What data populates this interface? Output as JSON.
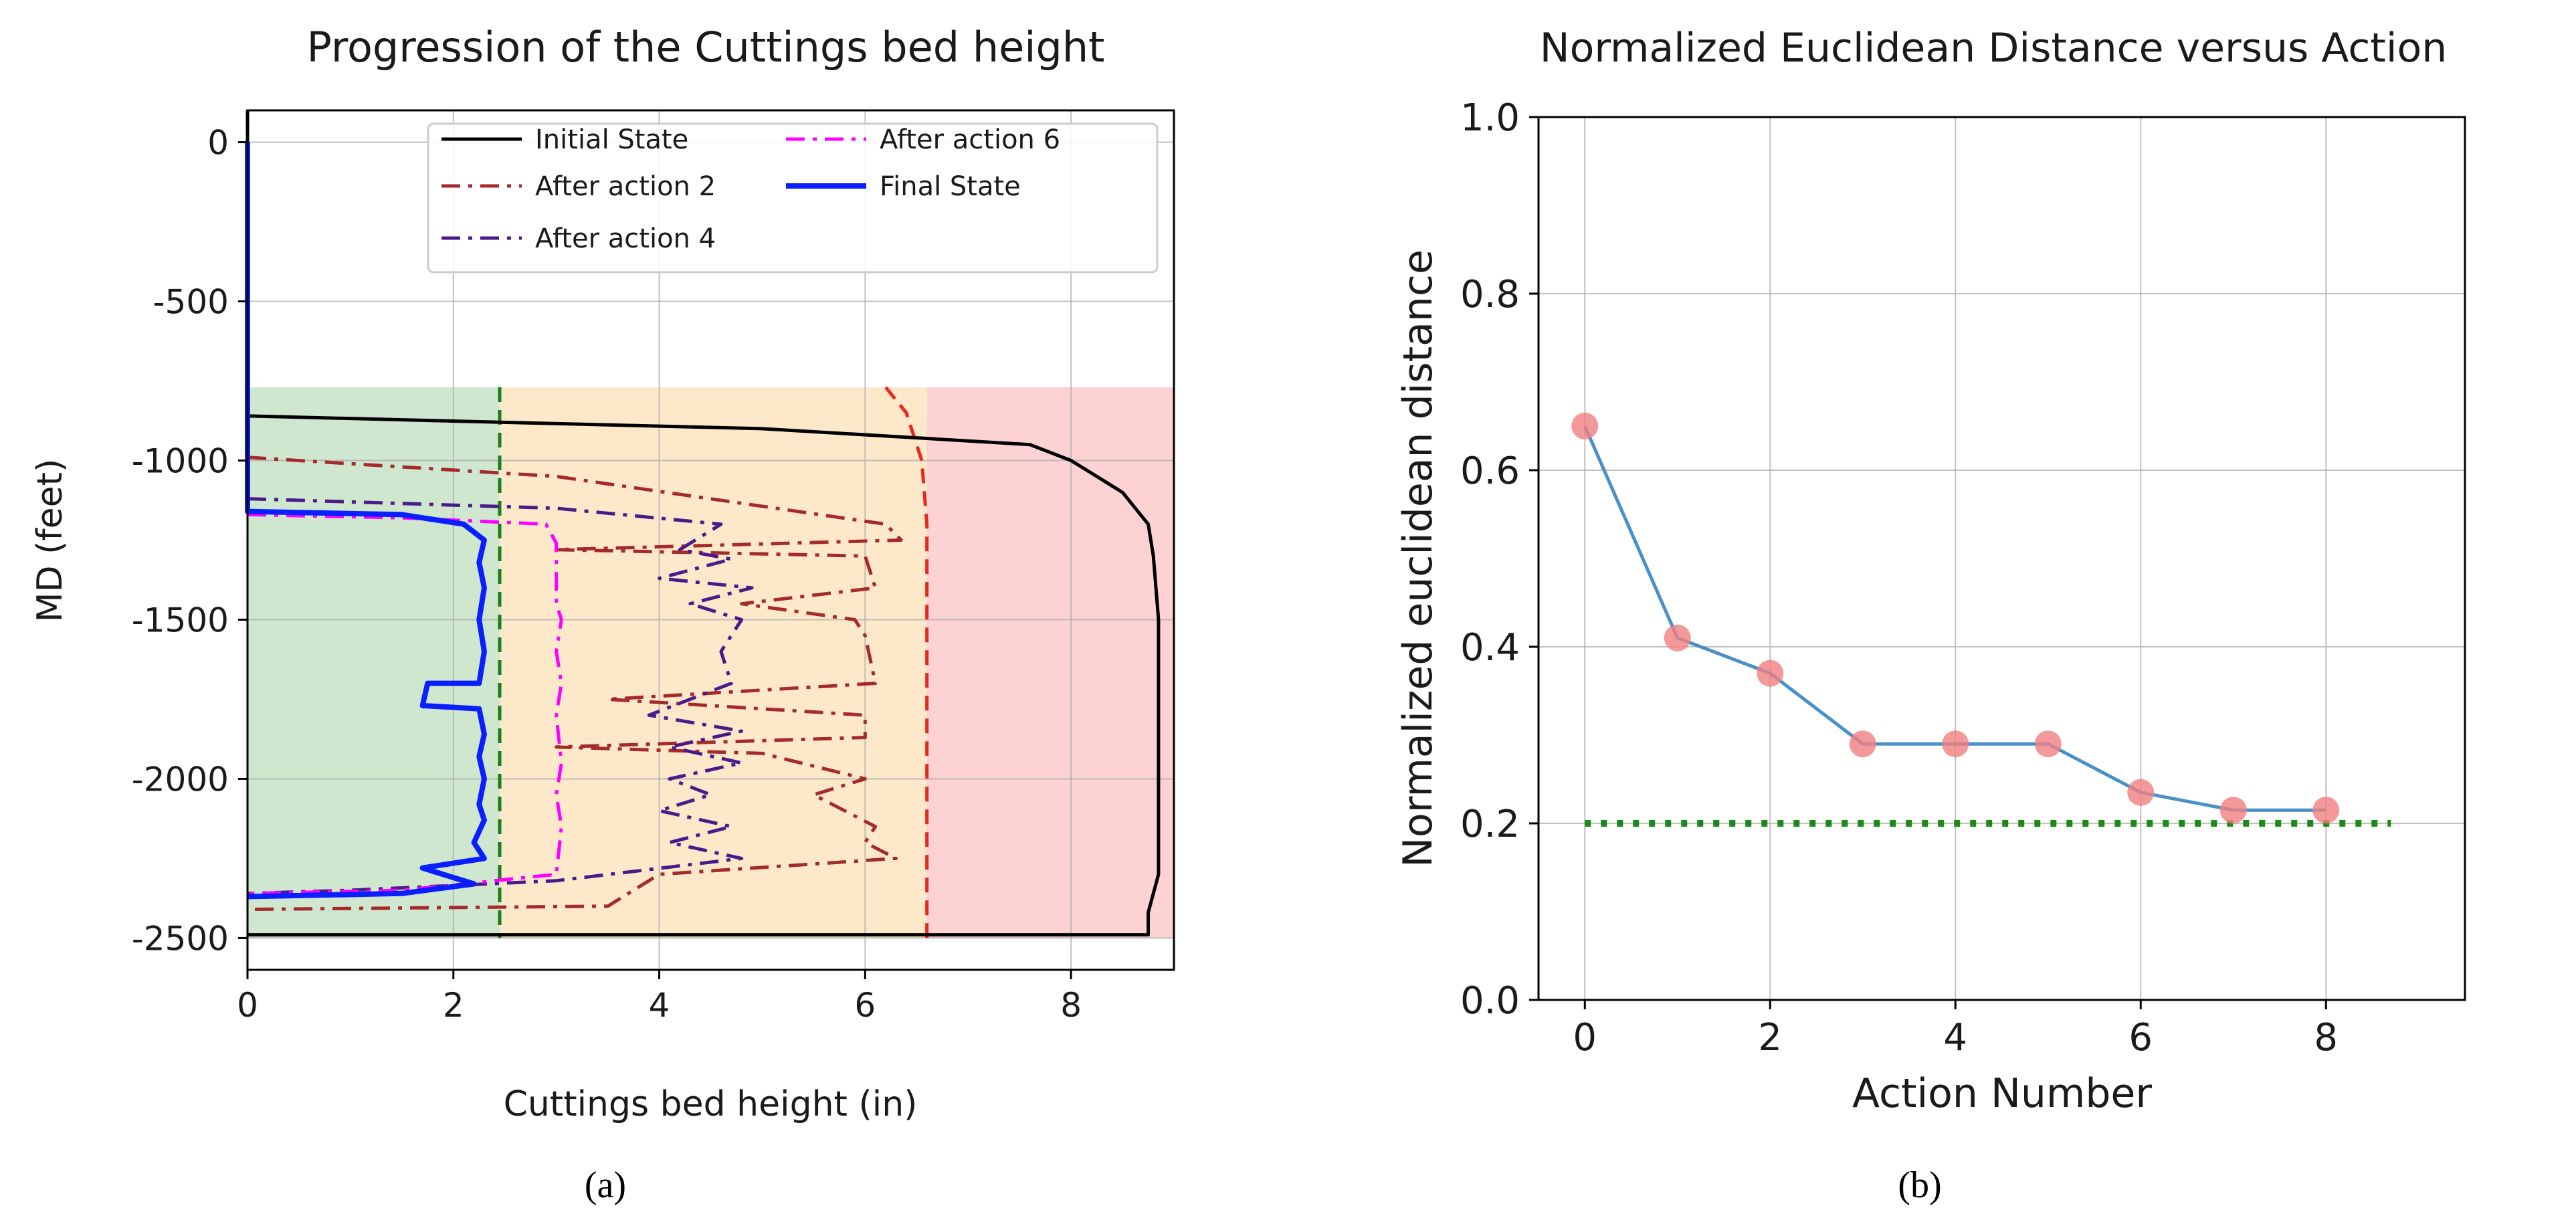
{
  "figure": {
    "caption_a": "(a)",
    "caption_b": "(b)",
    "colors": {
      "zone_green": "#cfe6cf",
      "zone_orange": "#fde9c9",
      "zone_red": "#fcd2d2",
      "initial_state": "#000000",
      "after_action_2": "#a52a2a",
      "after_action_4": "#4b1a8a",
      "after_action_6": "#ff00ff",
      "final_state": "#0a1fff",
      "threshold_green": "#1a7f1a",
      "threshold_red": "#e8281e",
      "line_b": "#4a90c8",
      "marker_b": "#f08080",
      "target_b": "#1a8a1a"
    }
  },
  "chart_data": [
    {
      "id": "a",
      "type": "line",
      "title": "Progression of the Cuttings bed height",
      "xlabel": "Cuttings bed height (in)",
      "ylabel": "MD (feet)",
      "xlim": [
        0,
        9
      ],
      "ylim": [
        -2600,
        100
      ],
      "xticks": [
        0,
        2,
        4,
        6,
        8
      ],
      "yticks": [
        0,
        -500,
        -1000,
        -1500,
        -2000,
        -2500
      ],
      "grid": true,
      "legend_position": "top-right",
      "zones": [
        {
          "name": "green",
          "x0": 0,
          "x1": 2.45,
          "y_top": -770,
          "y_bottom": -2500
        },
        {
          "name": "orange",
          "x0": 2.45,
          "x1": 6.6,
          "y_top": -770,
          "y_bottom": -2500
        },
        {
          "name": "red",
          "x0": 6.6,
          "x1": 9,
          "y_top": -770,
          "y_bottom": -2500
        }
      ],
      "thresholds": [
        {
          "name": "green-threshold",
          "style": "dashed",
          "color": "threshold_green",
          "points": [
            [
              2.45,
              -770
            ],
            [
              2.45,
              -2500
            ]
          ]
        },
        {
          "name": "red-threshold",
          "style": "dashed",
          "color": "threshold_red",
          "points": [
            [
              6.2,
              -770
            ],
            [
              6.4,
              -850
            ],
            [
              6.55,
              -1000
            ],
            [
              6.6,
              -1200
            ],
            [
              6.6,
              -2500
            ]
          ]
        }
      ],
      "series": [
        {
          "name": "Initial State",
          "color": "initial_state",
          "style": "solid",
          "width": 5,
          "points": [
            [
              0,
              100
            ],
            [
              0,
              -860
            ],
            [
              5,
              -900
            ],
            [
              7.6,
              -950
            ],
            [
              8.0,
              -1000
            ],
            [
              8.5,
              -1100
            ],
            [
              8.75,
              -1200
            ],
            [
              8.8,
              -1300
            ],
            [
              8.85,
              -1500
            ],
            [
              8.85,
              -1800
            ],
            [
              8.85,
              -2100
            ],
            [
              8.85,
              -2300
            ],
            [
              8.75,
              -2420
            ],
            [
              8.75,
              -2490
            ],
            [
              0,
              -2490
            ]
          ]
        },
        {
          "name": "After action 2",
          "color": "after_action_2",
          "style": "dashdot",
          "width": 5,
          "points": [
            [
              0,
              -990
            ],
            [
              3,
              -1050
            ],
            [
              6.2,
              -1200
            ],
            [
              6.35,
              -1250
            ],
            [
              3,
              -1280
            ],
            [
              6.0,
              -1300
            ],
            [
              6.1,
              -1400
            ],
            [
              4.8,
              -1450
            ],
            [
              5.9,
              -1500
            ],
            [
              6.0,
              -1550
            ],
            [
              6.1,
              -1700
            ],
            [
              3.5,
              -1750
            ],
            [
              6.0,
              -1800
            ],
            [
              6.0,
              -1870
            ],
            [
              3.0,
              -1900
            ],
            [
              5.0,
              -1920
            ],
            [
              6.0,
              -2000
            ],
            [
              5.5,
              -2050
            ],
            [
              6.1,
              -2150
            ],
            [
              6.0,
              -2200
            ],
            [
              6.3,
              -2250
            ],
            [
              4.0,
              -2300
            ],
            [
              3.5,
              -2400
            ],
            [
              0,
              -2410
            ]
          ]
        },
        {
          "name": "After action 4",
          "color": "after_action_4",
          "style": "dashdot",
          "width": 5,
          "points": [
            [
              0,
              -1120
            ],
            [
              3.0,
              -1150
            ],
            [
              4.6,
              -1200
            ],
            [
              4.2,
              -1280
            ],
            [
              4.7,
              -1310
            ],
            [
              4.0,
              -1370
            ],
            [
              4.9,
              -1400
            ],
            [
              4.3,
              -1450
            ],
            [
              4.8,
              -1500
            ],
            [
              4.6,
              -1600
            ],
            [
              4.7,
              -1700
            ],
            [
              3.9,
              -1800
            ],
            [
              4.8,
              -1850
            ],
            [
              4.1,
              -1900
            ],
            [
              4.8,
              -1950
            ],
            [
              4.1,
              -2000
            ],
            [
              4.5,
              -2050
            ],
            [
              4.0,
              -2100
            ],
            [
              4.7,
              -2150
            ],
            [
              4.1,
              -2200
            ],
            [
              4.8,
              -2250
            ],
            [
              3.0,
              -2320
            ],
            [
              1.0,
              -2350
            ],
            [
              0,
              -2360
            ]
          ]
        },
        {
          "name": "After action 6",
          "color": "after_action_6",
          "style": "dashdot",
          "width": 5,
          "points": [
            [
              0,
              -1170
            ],
            [
              1.5,
              -1180
            ],
            [
              2.9,
              -1200
            ],
            [
              3.0,
              -1260
            ],
            [
              3.0,
              -1450
            ],
            [
              3.05,
              -1500
            ],
            [
              3.0,
              -1600
            ],
            [
              3.05,
              -1700
            ],
            [
              3.0,
              -1800
            ],
            [
              3.05,
              -1950
            ],
            [
              3.0,
              -2050
            ],
            [
              3.05,
              -2150
            ],
            [
              3.0,
              -2300
            ],
            [
              1.5,
              -2350
            ],
            [
              0,
              -2360
            ]
          ]
        },
        {
          "name": "Final State",
          "color": "final_state",
          "style": "solid",
          "width": 8,
          "points": [
            [
              0,
              0
            ],
            [
              0,
              -1160
            ],
            [
              1.5,
              -1170
            ],
            [
              2.1,
              -1200
            ],
            [
              2.3,
              -1250
            ],
            [
              2.25,
              -1320
            ],
            [
              2.3,
              -1400
            ],
            [
              2.25,
              -1500
            ],
            [
              2.3,
              -1600
            ],
            [
              2.25,
              -1700
            ],
            [
              1.75,
              -1700
            ],
            [
              1.7,
              -1770
            ],
            [
              2.25,
              -1780
            ],
            [
              2.3,
              -1860
            ],
            [
              2.25,
              -1930
            ],
            [
              2.3,
              -2000
            ],
            [
              2.25,
              -2080
            ],
            [
              2.3,
              -2130
            ],
            [
              2.2,
              -2200
            ],
            [
              2.3,
              -2250
            ],
            [
              1.7,
              -2280
            ],
            [
              2.2,
              -2330
            ],
            [
              1.5,
              -2360
            ],
            [
              0,
              -2370
            ]
          ]
        }
      ]
    },
    {
      "id": "b",
      "type": "line",
      "title": "Normalized Euclidean Distance versus Action",
      "xlabel": "Action Number",
      "ylabel": "Normalized euclidean distance",
      "xlim": [
        -0.5,
        9.5
      ],
      "ylim": [
        0,
        1.0
      ],
      "xticks": [
        0,
        2,
        4,
        6,
        8
      ],
      "yticks": [
        0.0,
        0.2,
        0.4,
        0.6,
        0.8,
        1.0
      ],
      "ytick_labels": [
        "0.0",
        "0.2",
        "0.4",
        "0.6",
        "0.8",
        "1.0"
      ],
      "grid": true,
      "x": [
        0,
        1,
        2,
        3,
        4,
        5,
        6,
        7,
        8
      ],
      "values": [
        0.65,
        0.41,
        0.37,
        0.29,
        0.29,
        0.29,
        0.235,
        0.215,
        0.215
      ],
      "target": {
        "value": 0.2,
        "x0": 0,
        "x1": 8.7,
        "style": "dotted"
      }
    }
  ]
}
